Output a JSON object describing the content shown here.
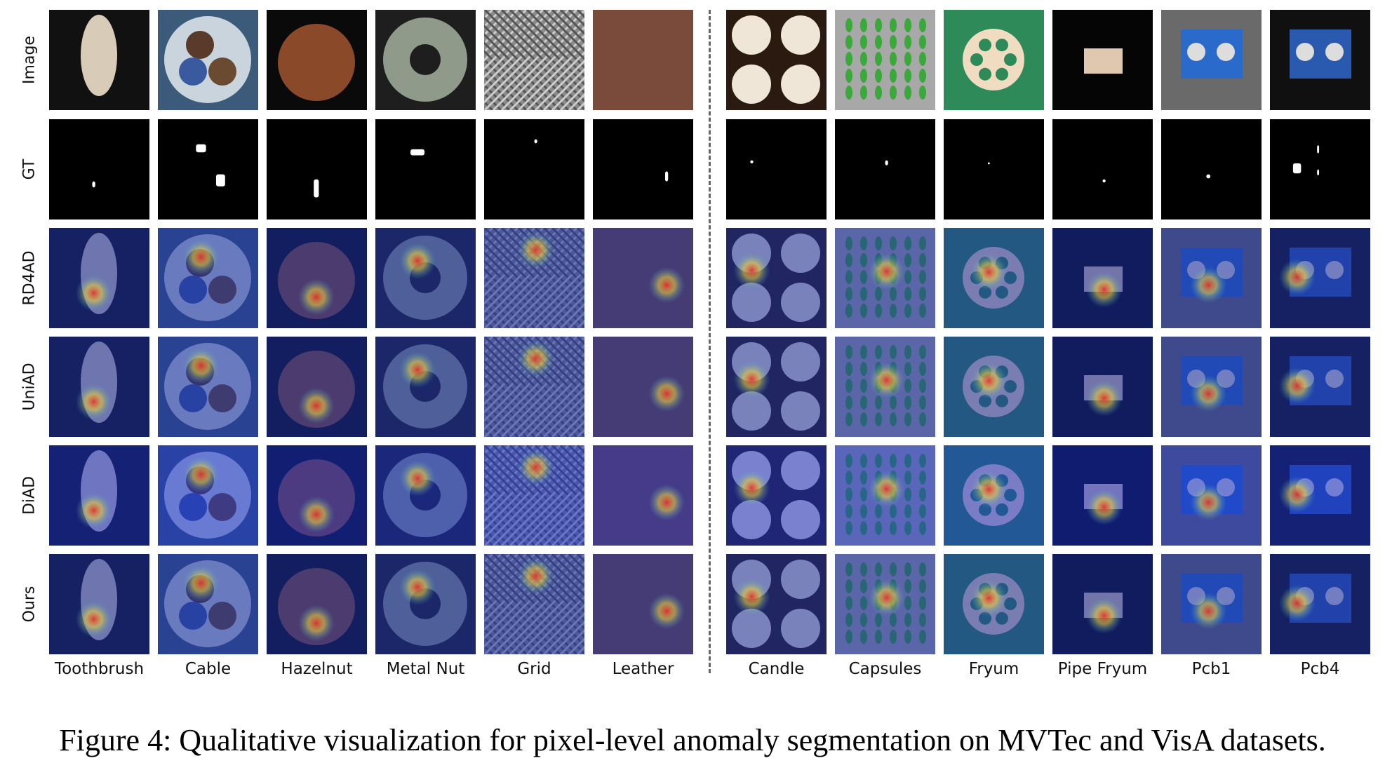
{
  "figure": {
    "caption": "Figure 4: Qualitative visualization for pixel-level anomaly segmentation on MVTec and VisA datasets.",
    "row_labels": [
      "Image",
      "GT",
      "RD4AD",
      "UniAD",
      "DiAD",
      "Ours"
    ],
    "groups": [
      {
        "dataset": "MVTec",
        "columns": [
          "Toothbrush",
          "Cable",
          "Hazelnut",
          "Metal Nut",
          "Grid",
          "Leather"
        ]
      },
      {
        "dataset": "VisA",
        "columns": [
          "Candle",
          "Capsules",
          "Fryum",
          "Pipe Fryum",
          "Pcb1",
          "Pcb4"
        ]
      }
    ],
    "colors": {
      "heatmap_low": "#1a2fa6",
      "heatmap_mid": "#3aa8c8",
      "heatmap_high": "#e8302a",
      "gt_background": "#000000",
      "gt_mask": "#ffffff"
    }
  }
}
